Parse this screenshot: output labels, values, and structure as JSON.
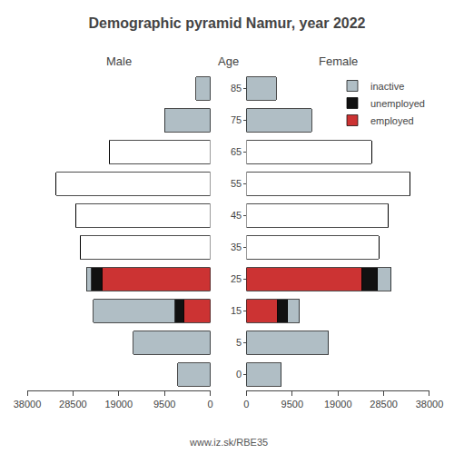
{
  "title": "Demographic pyramid Namur, year 2022",
  "ylabel": "Age",
  "annotations": [
    "www.iz.sk/RBE35"
  ],
  "chart_data": [
    {
      "type": "bar",
      "title": "Male",
      "orientation": "horizontal",
      "stacked": true,
      "grid": false,
      "categories": [
        "0",
        "5",
        "15",
        "25",
        "35",
        "45",
        "55",
        "65",
        "75",
        "85"
      ],
      "xlim": [
        0,
        38000
      ],
      "xticks": [
        0,
        9500,
        19000,
        28500,
        38000
      ],
      "series": [
        {
          "name": "inactive",
          "color": "#b0bec5",
          "values": [
            6800,
            16000,
            17000,
            1000,
            0,
            0,
            0,
            0,
            9500,
            3000
          ]
        },
        {
          "name": "unemployed",
          "color": "#111111",
          "values": [
            0,
            0,
            1800,
            2200,
            0,
            0,
            0,
            0,
            0,
            0
          ]
        },
        {
          "name": "employed",
          "color": "#cc3333",
          "values": [
            0,
            0,
            5500,
            22500,
            0,
            0,
            0,
            0,
            0,
            0
          ]
        },
        {
          "color": "#ffffff",
          "values": [
            0,
            0,
            0,
            0,
            27000,
            28000,
            32000,
            21000,
            0,
            0
          ]
        }
      ]
    },
    {
      "type": "bar",
      "title": "Female",
      "orientation": "horizontal",
      "stacked": true,
      "grid": false,
      "legend": "upper right",
      "categories": [
        "0",
        "5",
        "15",
        "25",
        "35",
        "45",
        "55",
        "65",
        "75",
        "85"
      ],
      "xlim": [
        0,
        38000
      ],
      "xticks": [
        0,
        9500,
        19000,
        28500,
        38000
      ],
      "series": [
        {
          "name": "inactive",
          "color": "#b0bec5",
          "values": [
            7200,
            17000,
            2500,
            2800,
            0,
            0,
            0,
            0,
            13500,
            6200
          ]
        },
        {
          "name": "unemployed",
          "color": "#111111",
          "values": [
            0,
            0,
            2000,
            3200,
            0,
            0,
            0,
            0,
            0,
            0
          ]
        },
        {
          "name": "employed",
          "color": "#cc3333",
          "values": [
            0,
            0,
            6500,
            24000,
            0,
            0,
            0,
            0,
            0,
            0
          ]
        },
        {
          "color": "#ffffff",
          "values": [
            0,
            0,
            0,
            0,
            27500,
            29500,
            34000,
            26000,
            0,
            0
          ]
        }
      ]
    }
  ]
}
